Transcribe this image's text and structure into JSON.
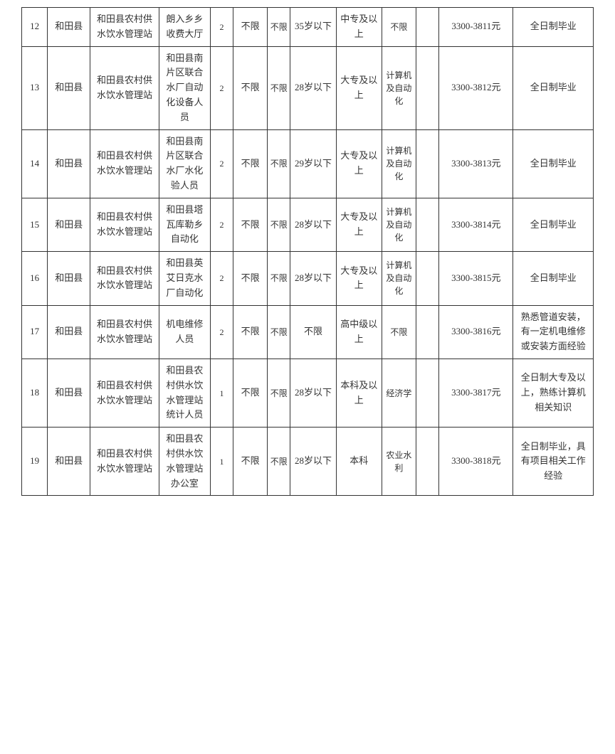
{
  "table": {
    "rows": [
      {
        "seq": "12",
        "county": "和田县",
        "unit": "和田县农村供水饮水管理站",
        "position": "朗入乡乡收费大厅",
        "count": "2",
        "gender": "不限",
        "ethnic": "不限",
        "age": "35岁以下",
        "education": "中专及以上",
        "major": "不限",
        "blank": "",
        "salary": "3300-3811元",
        "remark": "全日制毕业"
      },
      {
        "seq": "13",
        "county": "和田县",
        "unit": "和田县农村供水饮水管理站",
        "position": "和田县南片区联合水厂自动化设备人员",
        "count": "2",
        "gender": "不限",
        "ethnic": "不限",
        "age": "28岁以下",
        "education": "大专及以上",
        "major": "计算机及自动化",
        "blank": "",
        "salary": "3300-3812元",
        "remark": "全日制毕业"
      },
      {
        "seq": "14",
        "county": "和田县",
        "unit": "和田县农村供水饮水管理站",
        "position": "和田县南片区联合水厂水化验人员",
        "count": "2",
        "gender": "不限",
        "ethnic": "不限",
        "age": "29岁以下",
        "education": "大专及以上",
        "major": "计算机及自动化",
        "blank": "",
        "salary": "3300-3813元",
        "remark": "全日制毕业"
      },
      {
        "seq": "15",
        "county": "和田县",
        "unit": "和田县农村供水饮水管理站",
        "position": "和田县塔瓦库勒乡自动化",
        "count": "2",
        "gender": "不限",
        "ethnic": "不限",
        "age": "28岁以下",
        "education": "大专及以上",
        "major": "计算机及自动化",
        "blank": "",
        "salary": "3300-3814元",
        "remark": "全日制毕业"
      },
      {
        "seq": "16",
        "county": "和田县",
        "unit": "和田县农村供水饮水管理站",
        "position": "和田县英艾日克水厂自动化",
        "count": "2",
        "gender": "不限",
        "ethnic": "不限",
        "age": "28岁以下",
        "education": "大专及以上",
        "major": "计算机及自动化",
        "blank": "",
        "salary": "3300-3815元",
        "remark": "全日制毕业"
      },
      {
        "seq": "17",
        "county": "和田县",
        "unit": "和田县农村供水饮水管理站",
        "position": "机电维修人员",
        "count": "2",
        "gender": "不限",
        "ethnic": "不限",
        "age": "不限",
        "education": "高中级以上",
        "major": "不限",
        "blank": "",
        "salary": "3300-3816元",
        "remark": "熟悉管道安装，有一定机电维修或安装方面经验"
      },
      {
        "seq": "18",
        "county": "和田县",
        "unit": "和田县农村供水饮水管理站",
        "position": "和田县农村供水饮水管理站统计人员",
        "count": "1",
        "gender": "不限",
        "ethnic": "不限",
        "age": "28岁以下",
        "education": "本科及以上",
        "major": "经济学",
        "blank": "",
        "salary": "3300-3817元",
        "remark": "全日制大专及以上，熟练计算机相关知识"
      },
      {
        "seq": "19",
        "county": "和田县",
        "unit": "和田县农村供水饮水管理站",
        "position": "和田县农村供水饮水管理站办公室",
        "count": "1",
        "gender": "不限",
        "ethnic": "不限",
        "age": "28岁以下",
        "education": "本科",
        "major": "农业水利",
        "blank": "",
        "salary": "3300-3818元",
        "remark": "全日制毕业，具有项目相关工作经验"
      }
    ]
  }
}
